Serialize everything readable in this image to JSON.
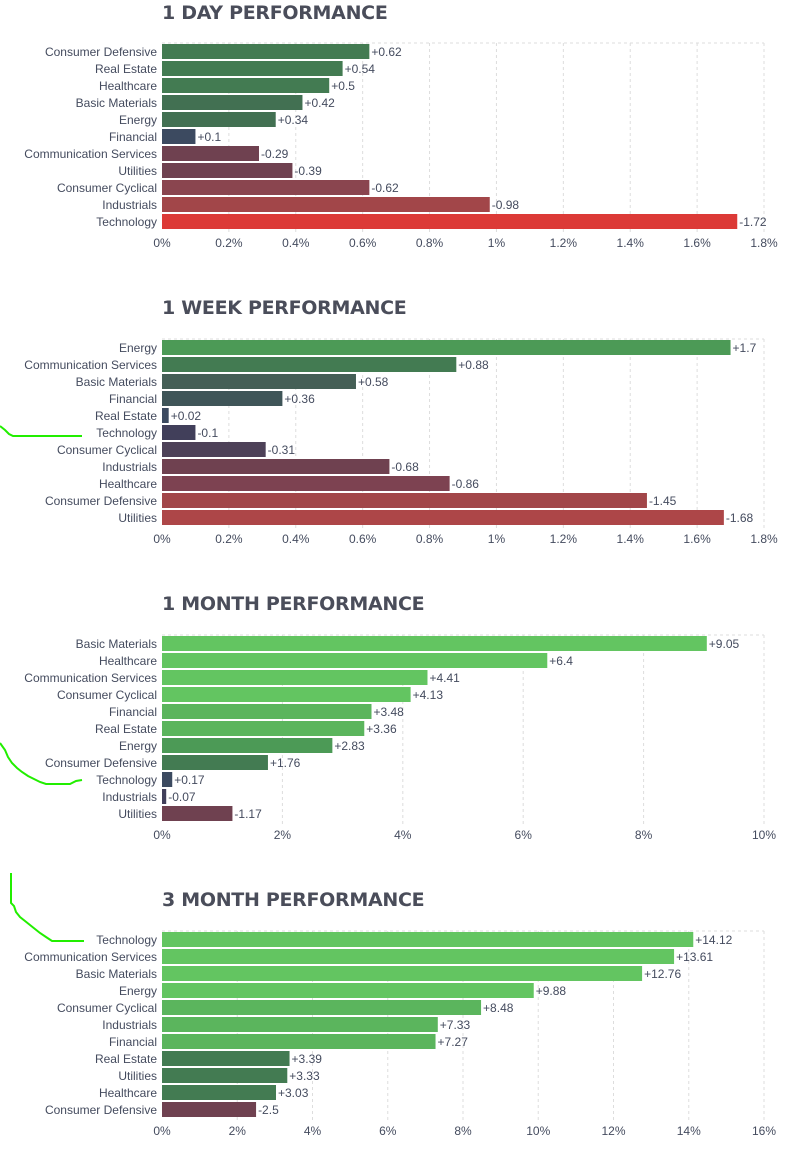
{
  "colors": {
    "accent_line": "#22ee00",
    "grid": "#d9d9d9",
    "text": "#444b5e"
  },
  "chart_data": [
    {
      "type": "bar",
      "title": "1 DAY PERFORMANCE",
      "categories": [
        "Consumer Defensive",
        "Real Estate",
        "Healthcare",
        "Basic Materials",
        "Energy",
        "Financial",
        "Communication Services",
        "Utilities",
        "Consumer Cyclical",
        "Industrials",
        "Technology"
      ],
      "values": [
        0.62,
        0.54,
        0.5,
        0.42,
        0.34,
        0.1,
        -0.29,
        -0.39,
        -0.62,
        -0.98,
        -1.72
      ],
      "value_labels": [
        "+0.62",
        "+0.54",
        "+0.5",
        "+0.42",
        "+0.34",
        "+0.1",
        "-0.29",
        "-0.39",
        "-0.62",
        "-0.98",
        "-1.72"
      ],
      "bar_colors": [
        "#437b52",
        "#437b52",
        "#437b52",
        "#427052",
        "#427052",
        "#3c4a60",
        "#6f4150",
        "#6f4150",
        "#8a454f",
        "#a24649",
        "#dc3a37"
      ],
      "xlim": [
        0,
        1.8
      ],
      "xticks": [
        0,
        0.2,
        0.4,
        0.6,
        0.8,
        1,
        1.2,
        1.4,
        1.6,
        1.8
      ],
      "xtick_labels": [
        "0%",
        "0.2%",
        "0.4%",
        "0.6%",
        "0.8%",
        "1%",
        "1.2%",
        "1.4%",
        "1.6%",
        "1.8%"
      ]
    },
    {
      "type": "bar",
      "title": "1 WEEK PERFORMANCE",
      "categories": [
        "Energy",
        "Communication Services",
        "Basic Materials",
        "Financial",
        "Real Estate",
        "Technology",
        "Consumer Cyclical",
        "Industrials",
        "Healthcare",
        "Consumer Defensive",
        "Utilities"
      ],
      "values": [
        1.7,
        0.88,
        0.58,
        0.36,
        0.02,
        -0.1,
        -0.31,
        -0.68,
        -0.86,
        -1.45,
        -1.68
      ],
      "value_labels": [
        "+1.7",
        "+0.88",
        "+0.58",
        "+0.36",
        "+0.02",
        "-0.1",
        "-0.31",
        "-0.68",
        "-0.86",
        "-1.45",
        "-1.68"
      ],
      "bar_colors": [
        "#4c9a56",
        "#437b52",
        "#455f56",
        "#3f5558",
        "#3c4a60",
        "#413f5a",
        "#4d4158",
        "#6f4150",
        "#7d4251",
        "#a24649",
        "#ad4648"
      ],
      "xlim": [
        0,
        1.8
      ],
      "xticks": [
        0,
        0.2,
        0.4,
        0.6,
        0.8,
        1,
        1.2,
        1.4,
        1.6,
        1.8
      ],
      "xtick_labels": [
        "0%",
        "0.2%",
        "0.4%",
        "0.6%",
        "0.8%",
        "1%",
        "1.2%",
        "1.4%",
        "1.6%",
        "1.8%"
      ]
    },
    {
      "type": "bar",
      "title": "1 MONTH PERFORMANCE",
      "categories": [
        "Basic Materials",
        "Healthcare",
        "Communication Services",
        "Consumer Cyclical",
        "Financial",
        "Real Estate",
        "Energy",
        "Consumer Defensive",
        "Technology",
        "Industrials",
        "Utilities"
      ],
      "values": [
        9.05,
        6.4,
        4.41,
        4.13,
        3.48,
        3.36,
        2.83,
        1.76,
        0.17,
        -0.07,
        -1.17
      ],
      "value_labels": [
        "+9.05",
        "+6.4",
        "+4.41",
        "+4.13",
        "+3.48",
        "+3.36",
        "+2.83",
        "+1.76",
        "+0.17",
        "-0.07",
        "-1.17"
      ],
      "bar_colors": [
        "#63c561",
        "#63c561",
        "#63c561",
        "#63c561",
        "#5bb55d",
        "#5bb55d",
        "#4c9a56",
        "#437b52",
        "#3c4a60",
        "#413f5a",
        "#6f4150"
      ],
      "xlim": [
        0,
        10
      ],
      "xticks": [
        0,
        2,
        4,
        6,
        8,
        10
      ],
      "xtick_labels": [
        "0%",
        "2%",
        "4%",
        "6%",
        "8%",
        "10%"
      ]
    },
    {
      "type": "bar",
      "title": "3 MONTH PERFORMANCE",
      "categories": [
        "Technology",
        "Communication Services",
        "Basic Materials",
        "Energy",
        "Consumer Cyclical",
        "Industrials",
        "Financial",
        "Real Estate",
        "Utilities",
        "Healthcare",
        "Consumer Defensive"
      ],
      "values": [
        14.12,
        13.61,
        12.76,
        9.88,
        8.48,
        7.33,
        7.27,
        3.39,
        3.33,
        3.03,
        -2.5
      ],
      "value_labels": [
        "+14.12",
        "+13.61",
        "+12.76",
        "+9.88",
        "+8.48",
        "+7.33",
        "+7.27",
        "+3.39",
        "+3.33",
        "+3.03",
        "-2.5"
      ],
      "bar_colors": [
        "#63c561",
        "#63c561",
        "#63c561",
        "#63c561",
        "#5bb55d",
        "#5bb55d",
        "#5bb55d",
        "#437b52",
        "#437b52",
        "#437b52",
        "#6f4150"
      ],
      "xlim": [
        0,
        16
      ],
      "xticks": [
        0,
        2,
        4,
        6,
        8,
        10,
        12,
        14,
        16
      ],
      "xtick_labels": [
        "0%",
        "2%",
        "4%",
        "6%",
        "8%",
        "10%",
        "12%",
        "14%",
        "16%"
      ]
    }
  ]
}
